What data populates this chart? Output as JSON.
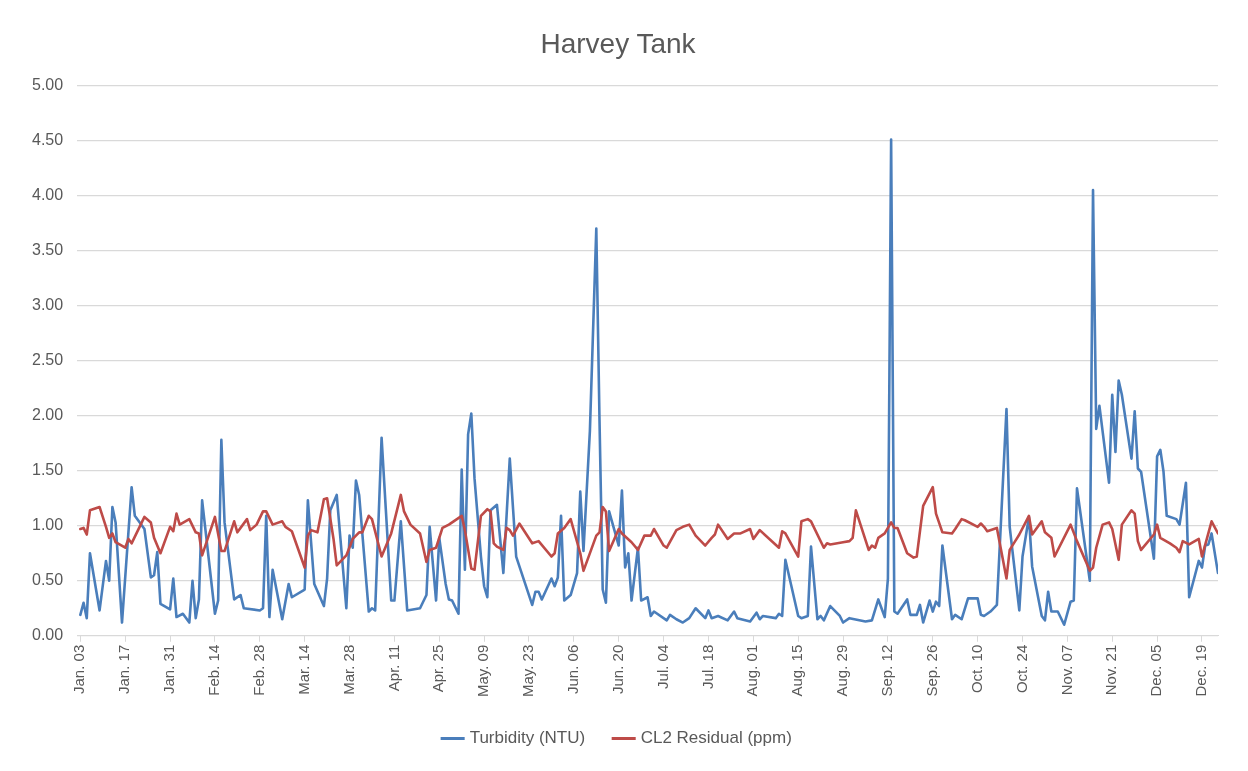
{
  "chart_data": {
    "type": "line",
    "title": "Harvey Tank",
    "xlim": [
      "--01-02",
      "--12-24"
    ],
    "xticks": [
      {
        "value": "--01-03",
        "label": "Jan. 03"
      },
      {
        "value": "--01-17",
        "label": "Jan. 17"
      },
      {
        "value": "--01-31",
        "label": "Jan. 31"
      },
      {
        "value": "--02-14",
        "label": "Feb. 14"
      },
      {
        "value": "--02-28",
        "label": "Feb. 28"
      },
      {
        "value": "--03-14",
        "label": "Mar. 14"
      },
      {
        "value": "--03-28",
        "label": "Mar. 28"
      },
      {
        "value": "--04-11",
        "label": "Apr. 11"
      },
      {
        "value": "--04-25",
        "label": "Apr. 25"
      },
      {
        "value": "--05-09",
        "label": "May. 09"
      },
      {
        "value": "--05-23",
        "label": "May. 23"
      },
      {
        "value": "--06-06",
        "label": "Jun. 06"
      },
      {
        "value": "--06-20",
        "label": "Jun. 20"
      },
      {
        "value": "--07-04",
        "label": "Jul. 04"
      },
      {
        "value": "--07-18",
        "label": "Jul. 18"
      },
      {
        "value": "--08-01",
        "label": "Aug. 01"
      },
      {
        "value": "--08-15",
        "label": "Aug. 15"
      },
      {
        "value": "--08-29",
        "label": "Aug. 29"
      },
      {
        "value": "--09-12",
        "label": "Sep. 12"
      },
      {
        "value": "--09-26",
        "label": "Sep. 26"
      },
      {
        "value": "--10-10",
        "label": "Oct. 10"
      },
      {
        "value": "--10-24",
        "label": "Oct. 24"
      },
      {
        "value": "--11-07",
        "label": "Nov. 07"
      },
      {
        "value": "--11-21",
        "label": "Nov. 21"
      },
      {
        "value": "--12-05",
        "label": "Dec. 05"
      },
      {
        "value": "--12-19",
        "label": "Dec. 19"
      }
    ],
    "ylim": [
      0,
      5
    ],
    "yticks": [
      {
        "value": 0,
        "label": "0.00"
      },
      {
        "value": 0.5,
        "label": "0.50"
      },
      {
        "value": 1,
        "label": "1.00"
      },
      {
        "value": 1.5,
        "label": "1.50"
      },
      {
        "value": 2,
        "label": "2.00"
      },
      {
        "value": 2.5,
        "label": "2.50"
      },
      {
        "value": 3,
        "label": "3.00"
      },
      {
        "value": 3.5,
        "label": "3.50"
      },
      {
        "value": 4,
        "label": "4.00"
      },
      {
        "value": 4.5,
        "label": "4.50"
      },
      {
        "value": 5,
        "label": "5.00"
      }
    ],
    "grid": "y",
    "legend": "bottom",
    "marker": "none",
    "line_style": "solid",
    "series": [
      {
        "name": "Turbidity (NTU)",
        "color": "#4a7ebb",
        "x": [
          "--01-03",
          "--01-04",
          "--01-05",
          "--01-06",
          "--01-09",
          "--01-11",
          "--01-12",
          "--01-13",
          "--01-14",
          "--01-16",
          "--01-19",
          "--01-20",
          "--01-23",
          "--01-25",
          "--01-26",
          "--01-27",
          "--01-28",
          "--01-31",
          "--02-01",
          "--02-02",
          "--02-04",
          "--02-06",
          "--02-07",
          "--02-08",
          "--02-09",
          "--02-10",
          "--02-14",
          "--02-15",
          "--02-16",
          "--02-17",
          "--02-20",
          "--02-22",
          "--02-23",
          "--02-28",
          "--03-01",
          "--03-02",
          "--03-03",
          "--03-04",
          "--03-07",
          "--03-09",
          "--03-10",
          "--03-14",
          "--03-15",
          "--03-17",
          "--03-20",
          "--03-21",
          "--03-22",
          "--03-24",
          "--03-27",
          "--03-28",
          "--03-29",
          "--03-30",
          "--03-31",
          "--04-03",
          "--04-04",
          "--04-05",
          "--04-07",
          "--04-10",
          "--04-11",
          "--04-13",
          "--04-15",
          "--04-19",
          "--04-21",
          "--04-22",
          "--04-24",
          "--04-25",
          "--04-27",
          "--04-28",
          "--04-29",
          "--05-01",
          "--05-02",
          "--05-03",
          "--05-04",
          "--05-05",
          "--05-06",
          "--05-08",
          "--05-09",
          "--05-10",
          "--05-11",
          "--05-13",
          "--05-15",
          "--05-17",
          "--05-19",
          "--05-24",
          "--05-25",
          "--05-26",
          "--05-27",
          "--05-30",
          "--05-31",
          "--06-01",
          "--06-02",
          "--06-03",
          "--06-05",
          "--06-07",
          "--06-08",
          "--06-09",
          "--06-11",
          "--06-13",
          "--06-14",
          "--06-15",
          "--06-16",
          "--06-17",
          "--06-20",
          "--06-21",
          "--06-22",
          "--06-23",
          "--06-24",
          "--06-26",
          "--06-27",
          "--06-29",
          "--06-30",
          "--07-01",
          "--07-05",
          "--07-06",
          "--07-08",
          "--07-10",
          "--07-12",
          "--07-14",
          "--07-17",
          "--07-18",
          "--07-19",
          "--07-21",
          "--07-24",
          "--07-26",
          "--07-27",
          "--07-31",
          "--08-02",
          "--08-03",
          "--08-04",
          "--08-08",
          "--08-09",
          "--08-10",
          "--08-11",
          "--08-15",
          "--08-16",
          "--08-18",
          "--08-19",
          "--08-21",
          "--08-22",
          "--08-23",
          "--08-25",
          "--08-28",
          "--08-29",
          "--08-31",
          "--09-05",
          "--09-07",
          "--09-09",
          "--09-11",
          "--09-12",
          "--09-13",
          "--09-14",
          "--09-15",
          "--09-18",
          "--09-19",
          "--09-21",
          "--09-22",
          "--09-23",
          "--09-25",
          "--09-26",
          "--09-27",
          "--09-28",
          "--09-29",
          "--10-02",
          "--10-03",
          "--10-05",
          "--10-07",
          "--10-10",
          "--10-11",
          "--10-12",
          "--10-14",
          "--10-16",
          "--10-19",
          "--10-20",
          "--10-23",
          "--10-24",
          "--10-26",
          "--10-27",
          "--10-30",
          "--10-31",
          "--11-01",
          "--11-02",
          "--11-04",
          "--11-06",
          "--11-08",
          "--11-09",
          "--11-10",
          "--11-14",
          "--11-15",
          "--11-16",
          "--11-17",
          "--11-20",
          "--11-21",
          "--11-22",
          "--11-23",
          "--11-24",
          "--11-27",
          "--11-28",
          "--11-29",
          "--11-30",
          "--12-04",
          "--12-05",
          "--12-06",
          "--12-07",
          "--12-08",
          "--12-11",
          "--12-12",
          "--12-14",
          "--12-15",
          "--12-18",
          "--12-19",
          "--12-20",
          "--12-21",
          "--12-22",
          "--12-24"
        ],
        "values": [
          0.19,
          0.3,
          0.16,
          0.75,
          0.23,
          0.68,
          0.5,
          1.17,
          1.03,
          0.12,
          1.35,
          1.09,
          0.97,
          0.53,
          0.55,
          0.76,
          0.29,
          0.24,
          0.52,
          0.17,
          0.2,
          0.12,
          0.5,
          0.16,
          0.33,
          1.23,
          0.2,
          0.32,
          1.78,
          1.03,
          0.33,
          0.37,
          0.25,
          0.23,
          0.25,
          1.09,
          0.17,
          0.6,
          0.15,
          0.47,
          0.35,
          0.42,
          1.23,
          0.47,
          0.27,
          0.52,
          1.14,
          1.28,
          0.25,
          0.91,
          0.8,
          1.41,
          1.28,
          0.22,
          0.25,
          0.23,
          1.8,
          0.32,
          0.32,
          1.04,
          0.23,
          0.25,
          0.37,
          0.99,
          0.32,
          0.89,
          0.47,
          0.33,
          0.32,
          0.2,
          1.51,
          0.6,
          1.83,
          2.02,
          1.43,
          0.72,
          0.45,
          0.35,
          1.14,
          1.19,
          0.57,
          1.61,
          0.72,
          0.28,
          0.4,
          0.4,
          0.33,
          0.52,
          0.45,
          0.53,
          1.09,
          0.32,
          0.37,
          0.57,
          1.31,
          0.77,
          1.86,
          3.7,
          1.96,
          0.42,
          0.3,
          1.13,
          0.82,
          1.32,
          0.62,
          0.75,
          0.32,
          0.8,
          0.32,
          0.35,
          0.18,
          0.22,
          0.14,
          0.19,
          0.15,
          0.12,
          0.16,
          0.25,
          0.16,
          0.23,
          0.16,
          0.18,
          0.14,
          0.22,
          0.16,
          0.13,
          0.21,
          0.15,
          0.18,
          0.16,
          0.2,
          0.18,
          0.69,
          0.18,
          0.16,
          0.18,
          0.81,
          0.15,
          0.18,
          0.14,
          0.27,
          0.18,
          0.12,
          0.16,
          0.13,
          0.14,
          0.33,
          0.17,
          0.52,
          4.51,
          0.22,
          0.2,
          0.33,
          0.19,
          0.19,
          0.28,
          0.12,
          0.32,
          0.22,
          0.31,
          0.27,
          0.82,
          0.15,
          0.19,
          0.15,
          0.34,
          0.34,
          0.19,
          0.18,
          0.22,
          0.28,
          2.06,
          0.99,
          0.23,
          0.72,
          1.08,
          0.63,
          0.18,
          0.14,
          0.4,
          0.22,
          0.22,
          0.1,
          0.31,
          0.32,
          1.34,
          0.5,
          4.05,
          1.88,
          2.09,
          1.39,
          2.19,
          1.67,
          2.32,
          2.19,
          1.61,
          2.04,
          1.52,
          1.49,
          0.7,
          1.63,
          1.69,
          1.49,
          1.09,
          1.06,
          1.01,
          1.39,
          0.35,
          0.68,
          0.62,
          0.82,
          0.83,
          0.93,
          0.57
        ]
      },
      {
        "name": "CL2 Residual (ppm)",
        "color": "#be4b48",
        "x": [
          "--01-03",
          "--01-04",
          "--01-05",
          "--01-06",
          "--01-09",
          "--01-11",
          "--01-12",
          "--01-13",
          "--01-14",
          "--01-17",
          "--01-18",
          "--01-19",
          "--01-23",
          "--01-25",
          "--01-26",
          "--01-28",
          "--01-31",
          "--02-01",
          "--02-02",
          "--02-03",
          "--02-06",
          "--02-08",
          "--02-09",
          "--02-10",
          "--02-14",
          "--02-16",
          "--02-17",
          "--02-20",
          "--02-21",
          "--02-24",
          "--02-25",
          "--02-27",
          "--03-01",
          "--03-02",
          "--03-04",
          "--03-07",
          "--03-08",
          "--03-10",
          "--03-14",
          "--03-15",
          "--03-16",
          "--03-18",
          "--03-20",
          "--03-21",
          "--03-23",
          "--03-24",
          "--03-27",
          "--03-29",
          "--03-31",
          "--04-01",
          "--04-03",
          "--04-04",
          "--04-07",
          "--04-10",
          "--04-13",
          "--04-14",
          "--04-16",
          "--04-19",
          "--04-20",
          "--04-21",
          "--04-22",
          "--04-24",
          "--04-26",
          "--04-28",
          "--05-02",
          "--05-03",
          "--05-05",
          "--05-06",
          "--05-08",
          "--05-10",
          "--05-11",
          "--05-12",
          "--05-13",
          "--05-15",
          "--05-16",
          "--05-17",
          "--05-18",
          "--05-20",
          "--05-24",
          "--05-26",
          "--05-30",
          "--05-31",
          "--06-01",
          "--06-03",
          "--06-05",
          "--06-08",
          "--06-09",
          "--06-13",
          "--06-14",
          "--06-15",
          "--06-16",
          "--06-17",
          "--06-20",
          "--06-21",
          "--06-24",
          "--06-26",
          "--06-28",
          "--06-30",
          "--07-01",
          "--07-04",
          "--07-05",
          "--07-08",
          "--07-10",
          "--07-12",
          "--07-14",
          "--07-17",
          "--07-19",
          "--07-20",
          "--07-21",
          "--07-24",
          "--07-26",
          "--07-28",
          "--07-31",
          "--08-01",
          "--08-03",
          "--08-09",
          "--08-10",
          "--08-11",
          "--08-15",
          "--08-16",
          "--08-18",
          "--08-19",
          "--08-23",
          "--08-24",
          "--08-25",
          "--08-29",
          "--08-31",
          "--09-01",
          "--09-02",
          "--09-06",
          "--09-07",
          "--09-08",
          "--09-09",
          "--09-11",
          "--09-13",
          "--09-14",
          "--09-15",
          "--09-18",
          "--09-20",
          "--09-21",
          "--09-23",
          "--09-26",
          "--09-27",
          "--09-29",
          "--10-02",
          "--10-03",
          "--10-05",
          "--10-06",
          "--10-10",
          "--10-11",
          "--10-12",
          "--10-13",
          "--10-16",
          "--10-19",
          "--10-20",
          "--10-23",
          "--10-26",
          "--10-27",
          "--10-30",
          "--10-31",
          "--11-02",
          "--11-03",
          "--11-08",
          "--11-10",
          "--11-14",
          "--11-15",
          "--11-16",
          "--11-18",
          "--11-20",
          "--11-21",
          "--11-23",
          "--11-24",
          "--11-27",
          "--11-28",
          "--11-29",
          "--11-30",
          "--12-04",
          "--12-05",
          "--12-06",
          "--12-09",
          "--12-11",
          "--12-12",
          "--12-13",
          "--12-15",
          "--12-18",
          "--12-19",
          "--12-22",
          "--12-24"
        ],
        "values": [
          0.97,
          0.98,
          0.92,
          1.14,
          1.17,
          0.99,
          0.89,
          0.93,
          0.85,
          0.8,
          0.88,
          0.84,
          1.08,
          1.03,
          0.89,
          0.75,
          0.99,
          0.95,
          1.11,
          1.01,
          1.06,
          0.94,
          0.93,
          0.73,
          1.08,
          0.77,
          0.77,
          1.04,
          0.94,
          1.06,
          0.96,
          1.01,
          1.13,
          1.13,
          1.01,
          1.04,
          0.99,
          0.95,
          0.62,
          0.91,
          0.96,
          0.94,
          1.24,
          1.25,
          0.88,
          0.64,
          0.73,
          0.88,
          0.94,
          0.94,
          1.09,
          1.06,
          0.72,
          0.93,
          1.28,
          1.13,
          1.01,
          0.93,
          0.8,
          0.67,
          0.78,
          0.8,
          0.98,
          1.01,
          1.09,
          0.96,
          0.61,
          0.6,
          1.09,
          1.15,
          1.13,
          0.84,
          0.81,
          0.78,
          0.98,
          0.96,
          0.91,
          1.02,
          0.84,
          0.86,
          0.72,
          0.75,
          0.93,
          0.98,
          1.06,
          0.75,
          0.59,
          0.91,
          0.94,
          1.17,
          1.13,
          0.77,
          0.97,
          0.93,
          0.85,
          0.78,
          0.91,
          0.91,
          0.97,
          0.82,
          0.8,
          0.96,
          0.99,
          1.01,
          0.91,
          0.82,
          0.89,
          0.92,
          1.01,
          0.88,
          0.93,
          0.93,
          0.97,
          0.88,
          0.96,
          0.8,
          0.95,
          0.93,
          0.72,
          1.04,
          1.06,
          1.04,
          0.8,
          0.84,
          0.83,
          0.85,
          0.86,
          0.89,
          1.14,
          0.78,
          0.82,
          0.8,
          0.89,
          0.93,
          1.03,
          0.98,
          0.98,
          0.75,
          0.71,
          0.72,
          1.18,
          1.35,
          1.11,
          0.94,
          0.93,
          0.97,
          1.06,
          1.05,
          0.99,
          1.02,
          0.99,
          0.95,
          0.98,
          0.52,
          0.78,
          0.92,
          1.09,
          0.92,
          1.04,
          0.94,
          0.89,
          0.72,
          1.01,
          0.86,
          0.59,
          0.62,
          0.8,
          1.01,
          1.03,
          0.97,
          0.69,
          1.01,
          1.14,
          1.11,
          0.86,
          0.78,
          0.92,
          1.01,
          0.89,
          0.84,
          0.8,
          0.76,
          0.86,
          0.83,
          0.88,
          0.72,
          1.04,
          0.93
        ]
      }
    ]
  }
}
